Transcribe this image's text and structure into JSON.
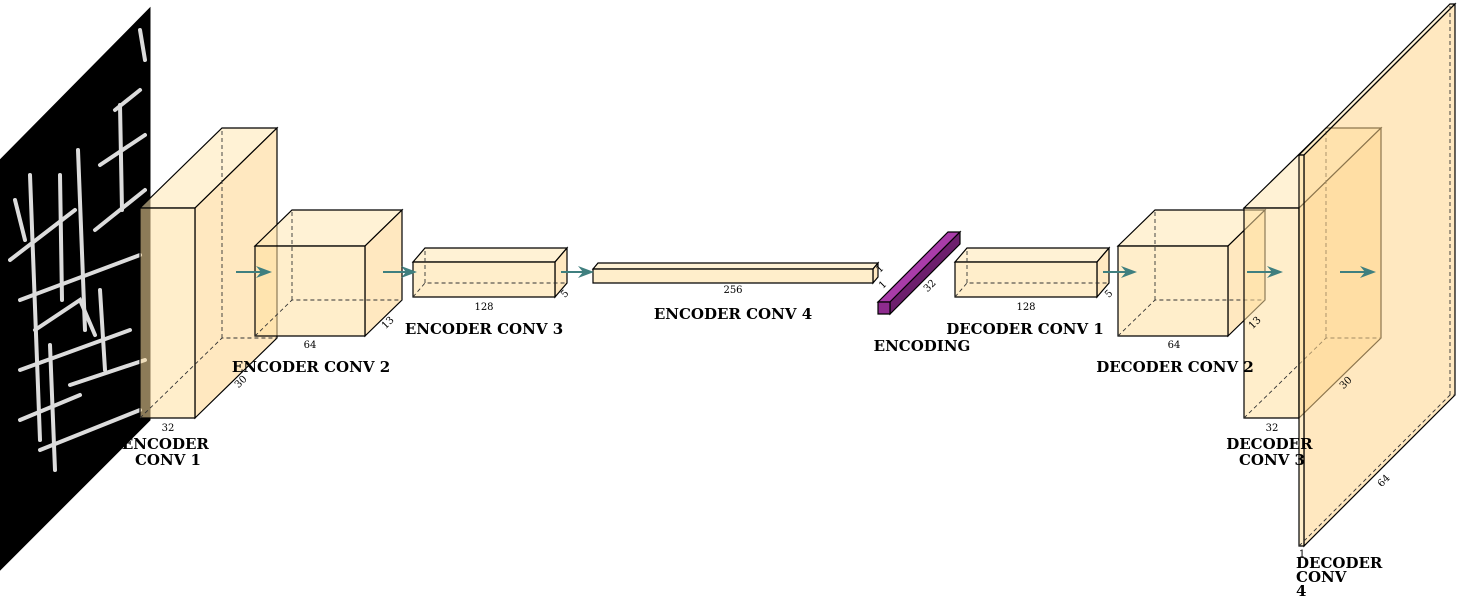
{
  "colors": {
    "layer_fill": "#ffe0a0",
    "encoding_fill": "#8e2b8e",
    "arrow": "#3f7f7f",
    "input_bg": "#000000",
    "input_stroke": "#e6e6e6"
  },
  "input_image": {
    "icon": "road-sketch-image"
  },
  "layers": {
    "enc1": {
      "label_lines": [
        "ENCODER",
        "CONV 1"
      ],
      "dim_w": "32",
      "dim_d": "30"
    },
    "enc2": {
      "label_lines": [
        "ENCODER CONV 2"
      ],
      "dim_w": "64",
      "dim_d": "13"
    },
    "enc3": {
      "label_lines": [
        "ENCODER CONV 3"
      ],
      "dim_w": "128",
      "dim_d": "5"
    },
    "enc4": {
      "label_lines": [
        "ENCODER CONV 4"
      ],
      "dim_w": "256",
      "dim_d": "1"
    },
    "encoding": {
      "label_lines": [
        "ENCODING"
      ],
      "dim_a": "1",
      "dim_b": "32"
    },
    "dec1": {
      "label_lines": [
        "DECODER CONV 1"
      ],
      "dim_w": "128",
      "dim_d": "5"
    },
    "dec2": {
      "label_lines": [
        "DECODER CONV 2"
      ],
      "dim_w": "64",
      "dim_d": "13"
    },
    "dec3": {
      "label_lines": [
        "DECODER",
        "CONV 3"
      ],
      "dim_w": "32",
      "dim_d": "30"
    },
    "dec4": {
      "label_lines": [
        "DECODER",
        "CONV",
        "4"
      ],
      "dim_w": "1",
      "dim_d": "64"
    }
  }
}
